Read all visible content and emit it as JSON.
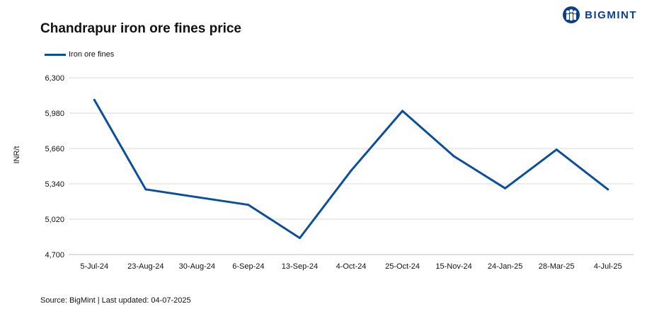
{
  "header": {
    "brand_name": "BIGMINT"
  },
  "chart_data": {
    "type": "line",
    "title": "Chandrapur iron ore fines price",
    "xlabel": "",
    "ylabel": "INR/t",
    "categories": [
      "5-Jul-24",
      "23-Aug-24",
      "30-Aug-24",
      "6-Sep-24",
      "13-Sep-24",
      "4-Oct-24",
      "25-Oct-24",
      "15-Nov-24",
      "24-Jan-25",
      "28-Mar-25",
      "4-Jul-25"
    ],
    "series": [
      {
        "name": "Iron ore fines",
        "color": "#0b4f9c",
        "values": [
          6100,
          5290,
          5220,
          5150,
          4850,
          5460,
          6000,
          5590,
          5300,
          5650,
          5290
        ]
      }
    ],
    "ylim": [
      4700,
      6300
    ],
    "yticks": [
      4700,
      5020,
      5340,
      5660,
      5980,
      6300
    ],
    "grid": true,
    "legend_position": "top-left"
  },
  "footer": {
    "source_text": "Source: BigMint | Last updated: 04-07-2025"
  }
}
